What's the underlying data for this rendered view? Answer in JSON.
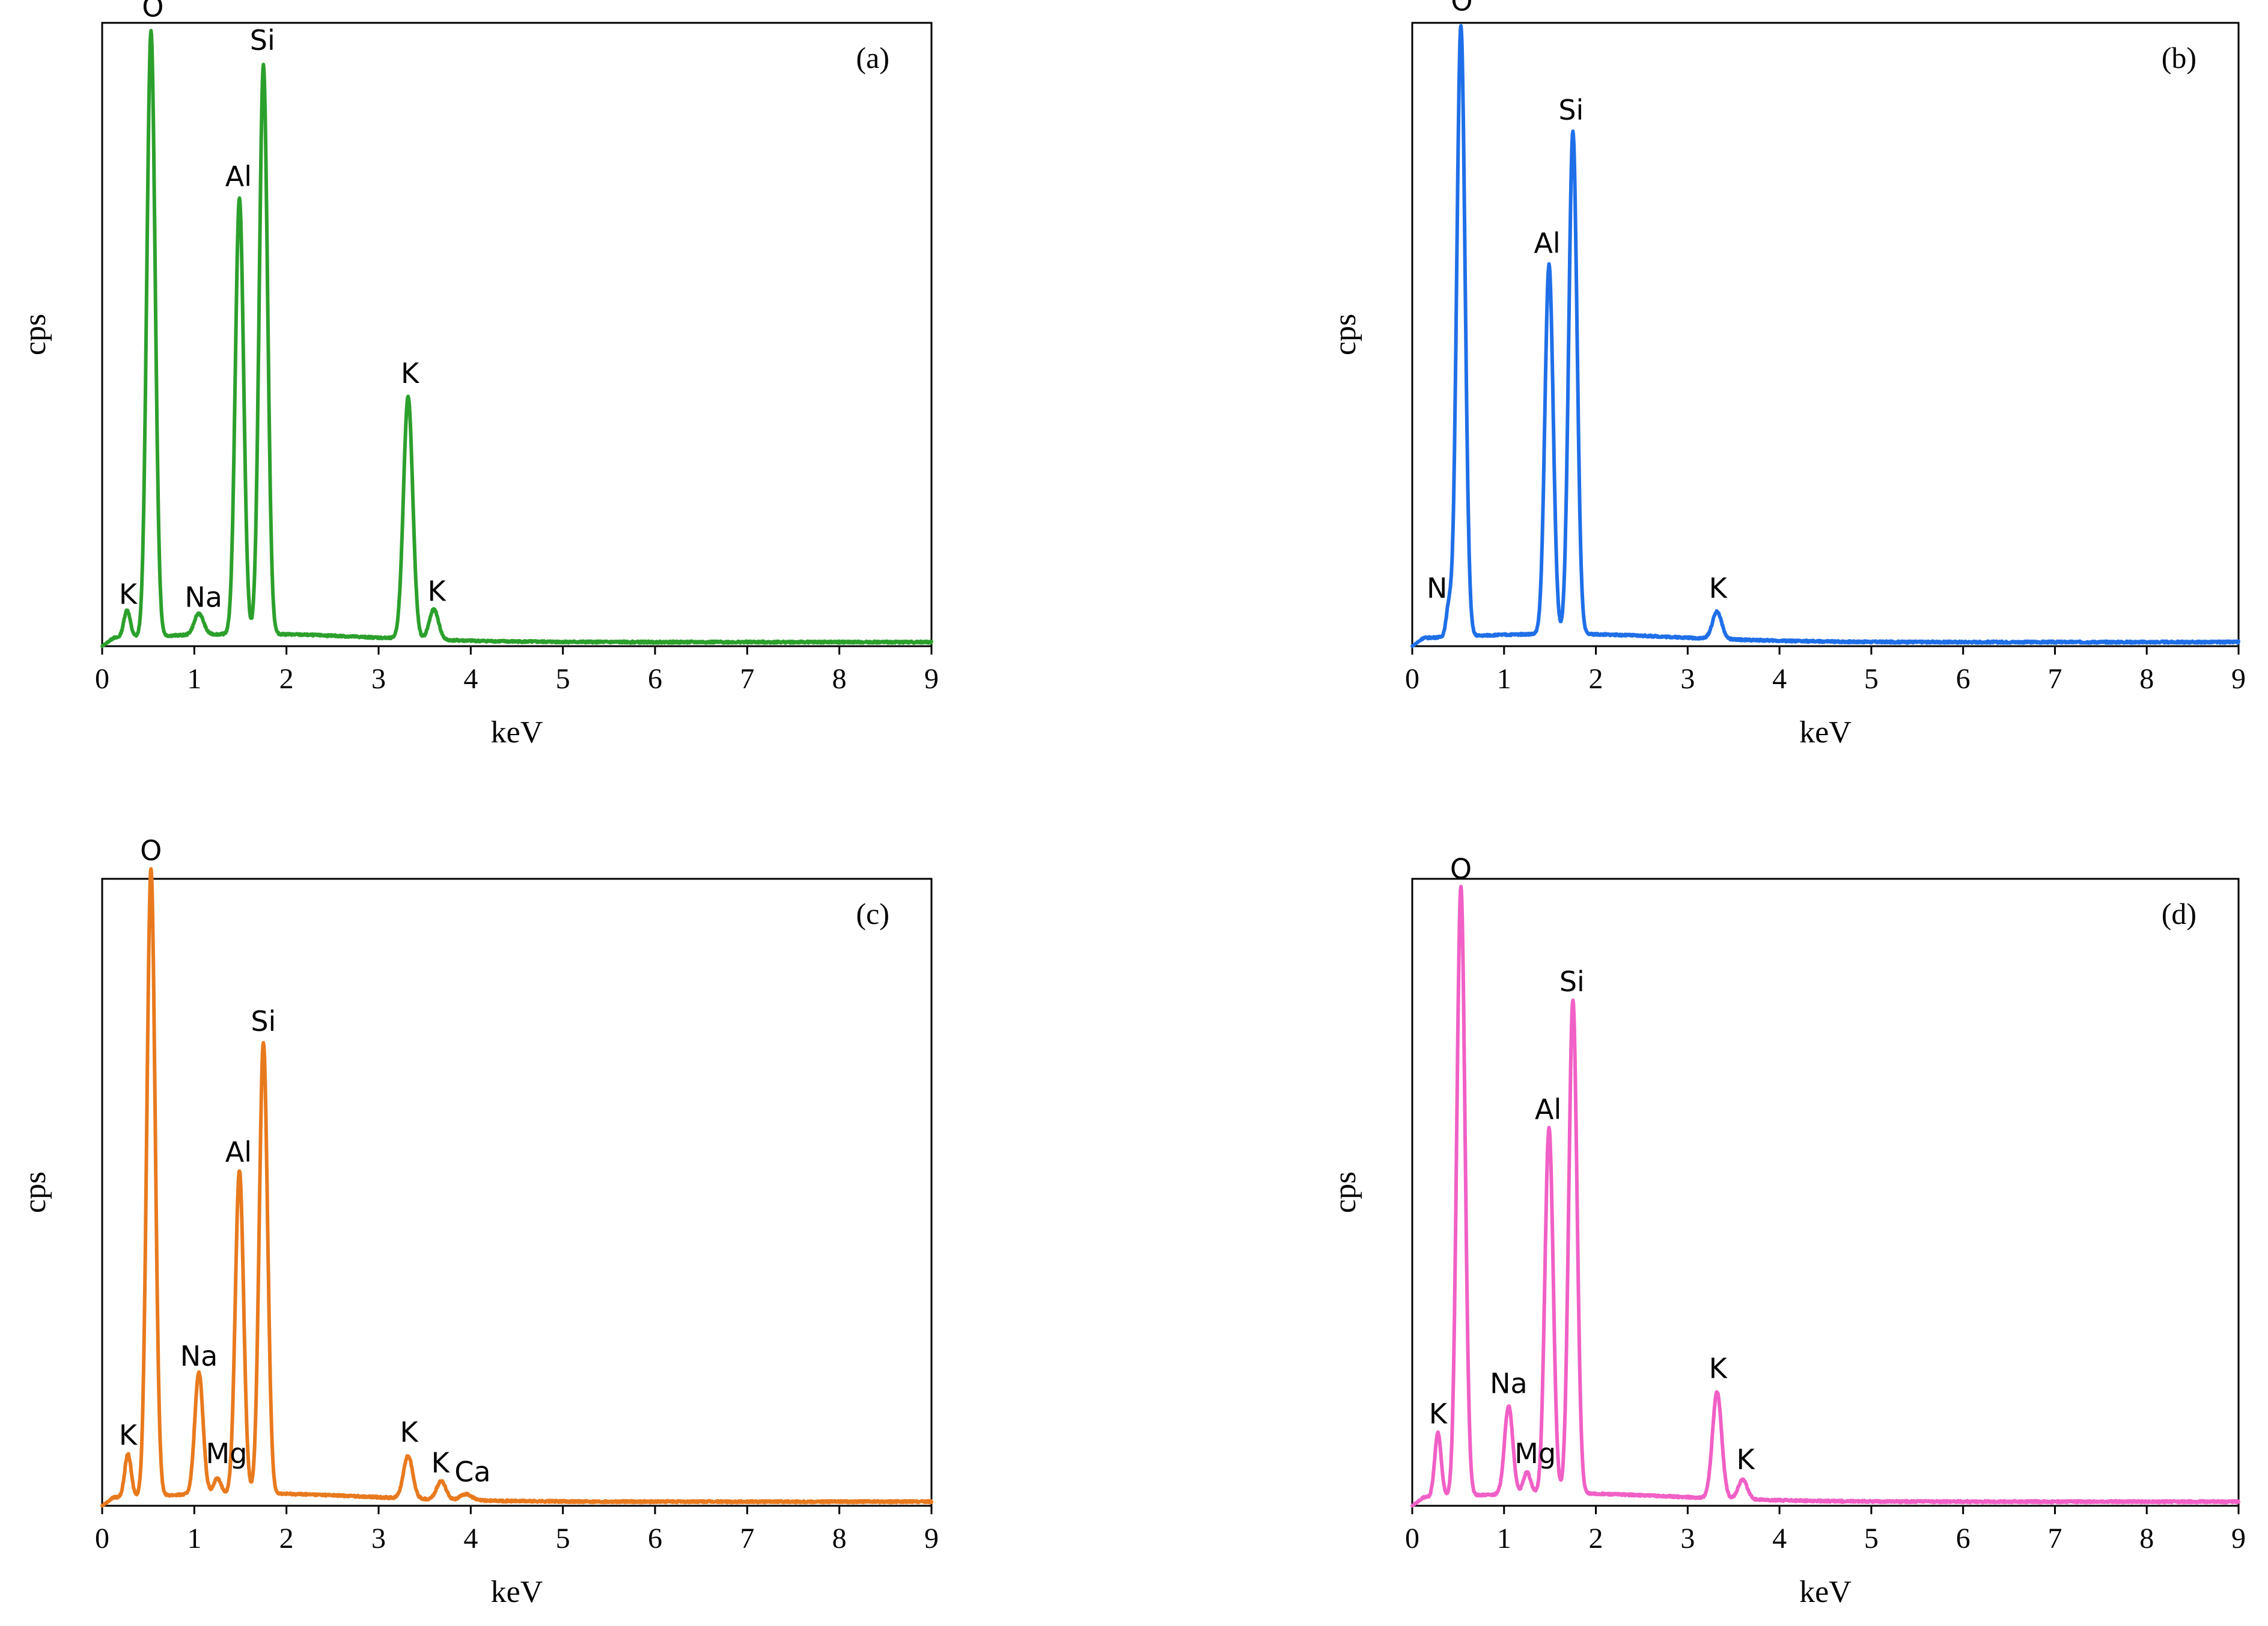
{
  "chart_data": [
    {
      "type": "line",
      "panel_label": "(a)",
      "xlabel": "keV",
      "ylabel": "cps",
      "xlim": [
        0,
        9
      ],
      "ylim": [
        0,
        100
      ],
      "x_ticks": [
        "0",
        "1",
        "2",
        "3",
        "4",
        "5",
        "6",
        "7",
        "8",
        "9"
      ],
      "color": "#2ca02c",
      "peaks": [
        {
          "label": "K",
          "x": 0.27,
          "y": 4.5,
          "w": 0.035
        },
        {
          "label": "O",
          "x": 0.53,
          "y": 100,
          "w": 0.045
        },
        {
          "label": "Na",
          "x": 1.05,
          "y": 3.5,
          "w": 0.05
        },
        {
          "label": "Al",
          "x": 1.49,
          "y": 72,
          "w": 0.045
        },
        {
          "label": "Si",
          "x": 1.75,
          "y": 94,
          "w": 0.045
        },
        {
          "label": "K",
          "x": 3.32,
          "y": 40,
          "w": 0.05
        },
        {
          "label": "K",
          "x": 3.6,
          "y": 5,
          "w": 0.05
        }
      ],
      "peak_labels": [
        {
          "text": "K",
          "x": 0.28,
          "y": 7
        },
        {
          "text": "Na",
          "x": 1.1,
          "y": 6.5
        },
        {
          "text": "O",
          "x": 0.55,
          "y": 104
        },
        {
          "text": "Al",
          "x": 1.48,
          "y": 76
        },
        {
          "text": "Si",
          "x": 1.74,
          "y": 98.5
        },
        {
          "text": "K",
          "x": 3.34,
          "y": 43.5
        },
        {
          "text": "K",
          "x": 3.63,
          "y": 7.5
        }
      ]
    },
    {
      "type": "line",
      "panel_label": "(b)",
      "xlabel": "keV",
      "ylabel": "cps",
      "xlim": [
        0,
        9
      ],
      "ylim": [
        0,
        100
      ],
      "x_ticks": [
        "0",
        "1",
        "2",
        "3",
        "4",
        "5",
        "6",
        "7",
        "8",
        "9"
      ],
      "color": "#1f6fe8",
      "peaks": [
        {
          "label": "N",
          "x": 0.4,
          "y": 5,
          "w": 0.03
        },
        {
          "label": "O",
          "x": 0.53,
          "y": 101,
          "w": 0.045
        },
        {
          "label": "Al",
          "x": 1.49,
          "y": 61,
          "w": 0.045
        },
        {
          "label": "Si",
          "x": 1.75,
          "y": 83,
          "w": 0.045
        },
        {
          "label": "K",
          "x": 3.32,
          "y": 4.5,
          "w": 0.05
        }
      ],
      "peak_labels": [
        {
          "text": "N",
          "x": 0.27,
          "y": 8
        },
        {
          "text": "O",
          "x": 0.54,
          "y": 105
        },
        {
          "text": "Al",
          "x": 1.47,
          "y": 65
        },
        {
          "text": "Si",
          "x": 1.73,
          "y": 87
        },
        {
          "text": "K",
          "x": 3.33,
          "y": 8
        }
      ]
    },
    {
      "type": "line",
      "panel_label": "(c)",
      "xlabel": "keV",
      "ylabel": "cps",
      "xlim": [
        0,
        9
      ],
      "ylim": [
        0,
        100
      ],
      "x_ticks": [
        "0",
        "1",
        "2",
        "3",
        "4",
        "5",
        "6",
        "7",
        "8",
        "9"
      ],
      "color": "#e87a1e",
      "peaks": [
        {
          "label": "K",
          "x": 0.28,
          "y": 7,
          "w": 0.035
        },
        {
          "label": "O",
          "x": 0.53,
          "y": 103,
          "w": 0.045
        },
        {
          "label": "Na",
          "x": 1.05,
          "y": 20,
          "w": 0.045
        },
        {
          "label": "Mg",
          "x": 1.25,
          "y": 2.5,
          "w": 0.04
        },
        {
          "label": "Al",
          "x": 1.49,
          "y": 53,
          "w": 0.045
        },
        {
          "label": "Si",
          "x": 1.75,
          "y": 74,
          "w": 0.045
        },
        {
          "label": "K",
          "x": 3.32,
          "y": 7,
          "w": 0.05
        },
        {
          "label": "K",
          "x": 3.68,
          "y": 3,
          "w": 0.05
        },
        {
          "label": "Ca",
          "x": 3.95,
          "y": 1,
          "w": 0.06
        }
      ],
      "peak_labels": [
        {
          "text": "K",
          "x": 0.28,
          "y": 10
        },
        {
          "text": "O",
          "x": 0.53,
          "y": 106
        },
        {
          "text": "Na",
          "x": 1.05,
          "y": 23
        },
        {
          "text": "Mg",
          "x": 1.35,
          "y": 7
        },
        {
          "text": "Al",
          "x": 1.48,
          "y": 56.5
        },
        {
          "text": "Si",
          "x": 1.75,
          "y": 78
        },
        {
          "text": "K",
          "x": 3.33,
          "y": 10.5
        },
        {
          "text": "K",
          "x": 3.67,
          "y": 5.5
        },
        {
          "text": "Ca",
          "x": 4.02,
          "y": 4
        }
      ]
    },
    {
      "type": "line",
      "panel_label": "(d)",
      "xlabel": "keV",
      "ylabel": "cps",
      "xlim": [
        0,
        9
      ],
      "ylim": [
        0,
        100
      ],
      "x_ticks": [
        "0",
        "1",
        "2",
        "3",
        "4",
        "5",
        "6",
        "7",
        "8",
        "9"
      ],
      "color": "#f060c6",
      "peaks": [
        {
          "label": "K",
          "x": 0.28,
          "y": 10.5,
          "w": 0.035
        },
        {
          "label": "O",
          "x": 0.53,
          "y": 100,
          "w": 0.045
        },
        {
          "label": "Na",
          "x": 1.05,
          "y": 14.5,
          "w": 0.045
        },
        {
          "label": "Mg",
          "x": 1.25,
          "y": 3.5,
          "w": 0.04
        },
        {
          "label": "Al",
          "x": 1.49,
          "y": 60,
          "w": 0.045
        },
        {
          "label": "Si",
          "x": 1.75,
          "y": 81,
          "w": 0.045
        },
        {
          "label": "K",
          "x": 3.32,
          "y": 17.5,
          "w": 0.05
        },
        {
          "label": "K",
          "x": 3.6,
          "y": 3.2,
          "w": 0.05
        }
      ],
      "peak_labels": [
        {
          "text": "K",
          "x": 0.28,
          "y": 13.5
        },
        {
          "text": "O",
          "x": 0.53,
          "y": 103
        },
        {
          "text": "Na",
          "x": 1.05,
          "y": 18.5
        },
        {
          "text": "Mg",
          "x": 1.34,
          "y": 7
        },
        {
          "text": "Al",
          "x": 1.48,
          "y": 63.5
        },
        {
          "text": "Si",
          "x": 1.74,
          "y": 84.5
        },
        {
          "text": "K",
          "x": 3.33,
          "y": 21
        },
        {
          "text": "K",
          "x": 3.63,
          "y": 6
        }
      ]
    }
  ]
}
